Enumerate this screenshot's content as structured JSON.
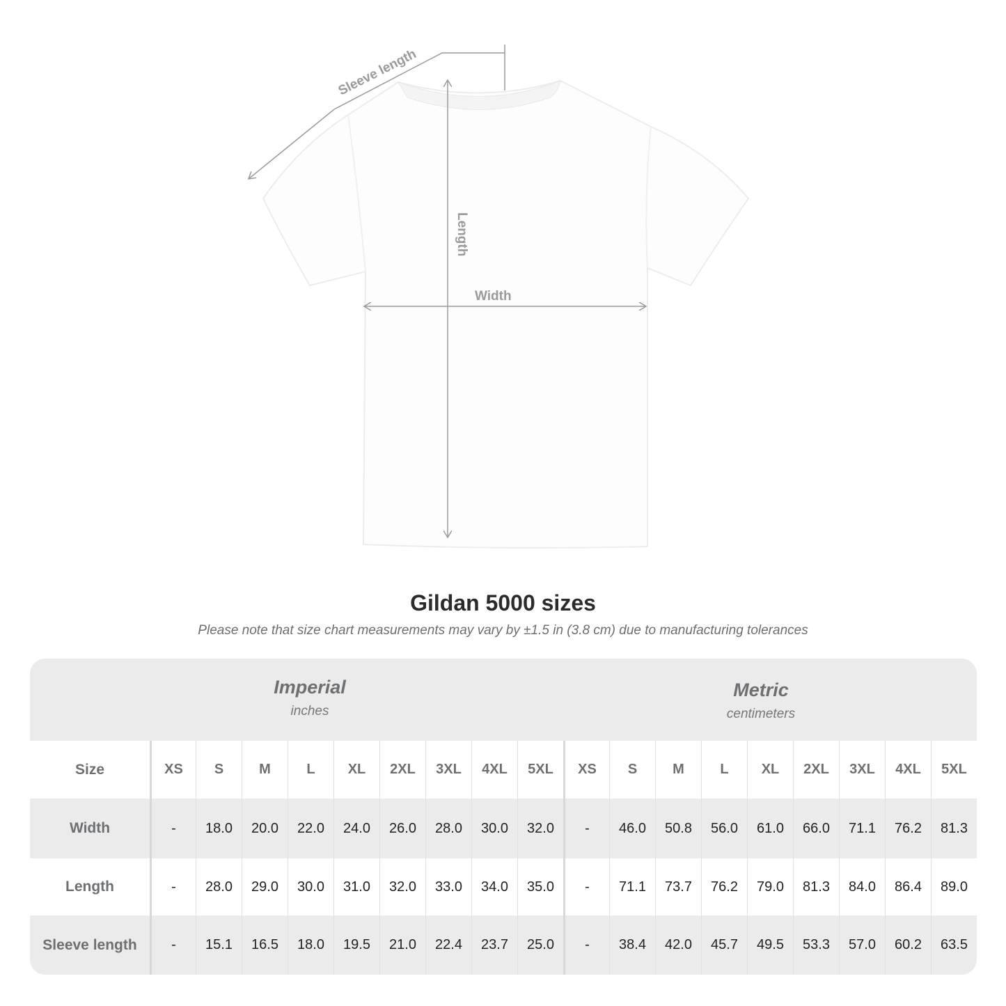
{
  "diagram": {
    "sleeve_label": "Sleeve length",
    "length_label": "Length",
    "width_label": "Width",
    "line_color": "#9a9a9a"
  },
  "title": "Gildan 5000 sizes",
  "note": "Please note that size chart measurements may vary by ±1.5 in (3.8 cm) due to manufacturing tolerances",
  "table": {
    "imperial": {
      "name": "Imperial",
      "unit": "inches"
    },
    "metric": {
      "name": "Metric",
      "unit": "centimeters"
    },
    "size_label": "Size",
    "sizes": [
      "XS",
      "S",
      "M",
      "L",
      "XL",
      "2XL",
      "3XL",
      "4XL",
      "5XL"
    ],
    "rows": [
      {
        "label": "Width",
        "imperial": [
          "-",
          "18.0",
          "20.0",
          "22.0",
          "24.0",
          "26.0",
          "28.0",
          "30.0",
          "32.0"
        ],
        "metric": [
          "-",
          "46.0",
          "50.8",
          "56.0",
          "61.0",
          "66.0",
          "71.1",
          "76.2",
          "81.3"
        ]
      },
      {
        "label": "Length",
        "imperial": [
          "-",
          "28.0",
          "29.0",
          "30.0",
          "31.0",
          "32.0",
          "33.0",
          "34.0",
          "35.0"
        ],
        "metric": [
          "-",
          "71.1",
          "73.7",
          "76.2",
          "79.0",
          "81.3",
          "84.0",
          "86.4",
          "89.0"
        ]
      },
      {
        "label": "Sleeve length",
        "imperial": [
          "-",
          "15.1",
          "16.5",
          "18.0",
          "19.5",
          "21.0",
          "22.4",
          "23.7",
          "25.0"
        ],
        "metric": [
          "-",
          "38.4",
          "42.0",
          "45.7",
          "49.5",
          "53.3",
          "57.0",
          "60.2",
          "63.5"
        ]
      }
    ]
  }
}
